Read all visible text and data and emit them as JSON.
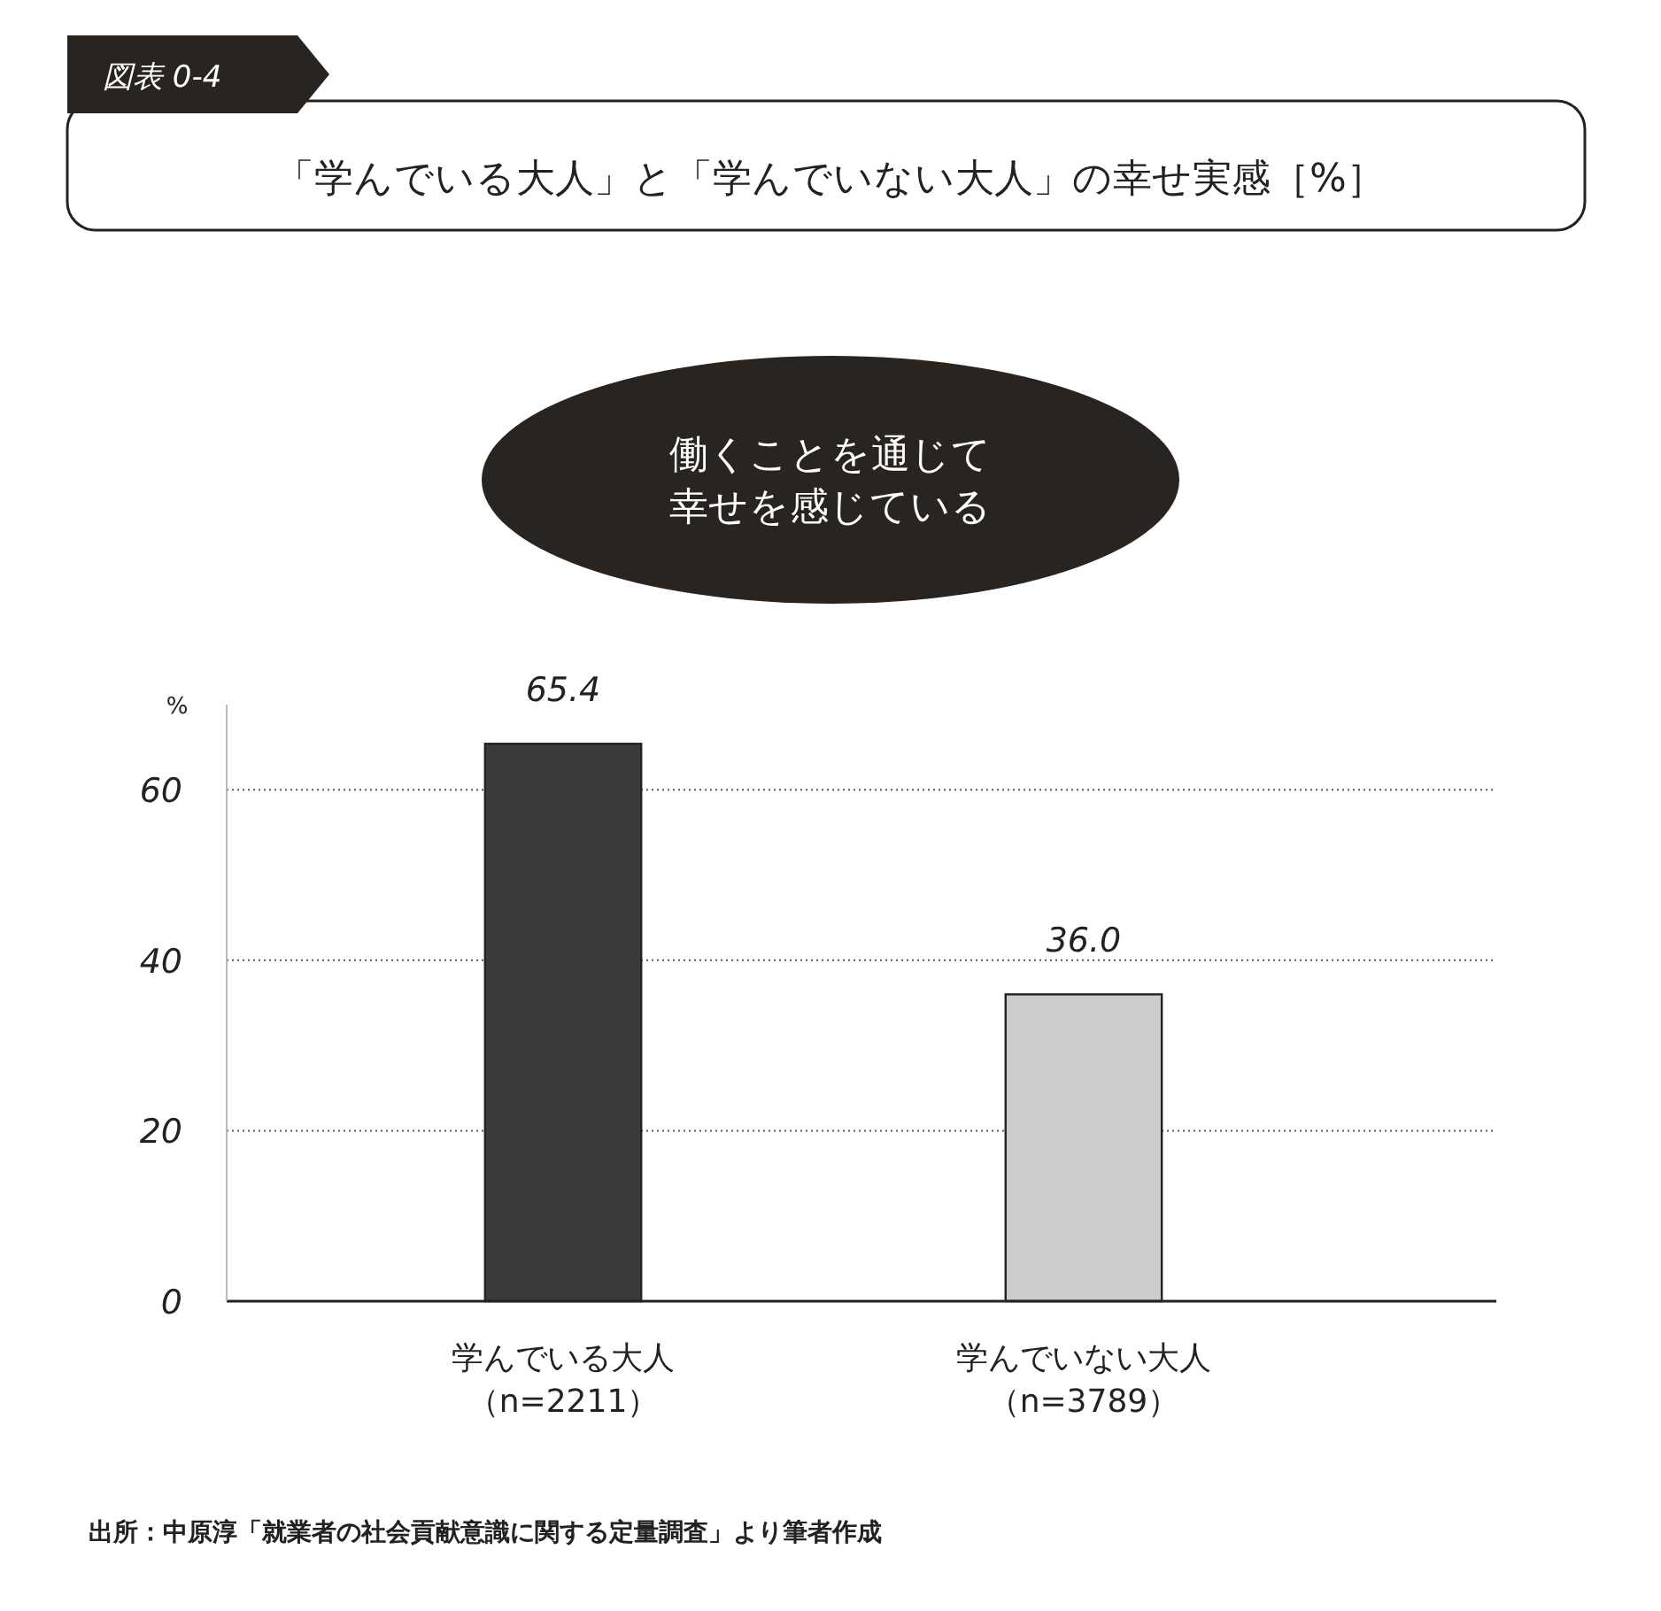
{
  "chart_data": {
    "type": "bar",
    "title": "「学んでいる大人」と「学んでいない大人」の幸せ実感［%］",
    "subtitle": "働くことを通じて幸せを感じている",
    "ylabel": "%",
    "categories": [
      "学んでいる大人（n=2211）",
      "学んでいない大人（n=3789）"
    ],
    "values": [
      65.4,
      36.0
    ],
    "colors": [
      "#3a3a3a",
      "#cccccc"
    ],
    "value_labels": [
      "65.4",
      "36.0"
    ],
    "ylim": [
      0,
      70
    ],
    "yticks": [
      0,
      20,
      40,
      60
    ],
    "grid": "y",
    "annotations": [
      "図表 0-4",
      "出所：中原淳「就業者の社会貢献意識に関する定量調査」より筆者作成"
    ]
  }
}
